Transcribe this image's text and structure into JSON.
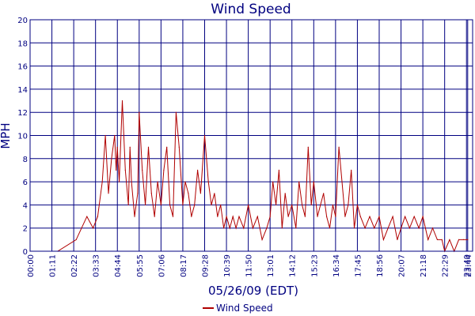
{
  "chart_data": {
    "type": "line",
    "title": "Wind Speed",
    "xlabel": "05/26/09 (EDT)",
    "ylabel": "MPH",
    "ylim": [
      0,
      20
    ],
    "yticks": [
      0,
      2,
      4,
      6,
      8,
      10,
      12,
      14,
      16,
      18,
      20
    ],
    "xlim_minutes": [
      0,
      1440
    ],
    "xticks": [
      "00:00",
      "01:11",
      "02:22",
      "03:33",
      "04:44",
      "05:55",
      "07:06",
      "08:17",
      "09:28",
      "10:39",
      "11:50",
      "13:01",
      "14:12",
      "15:23",
      "16:34",
      "17:45",
      "18:56",
      "20:07",
      "21:18",
      "22:29",
      "23:40",
      "23:44"
    ],
    "grid": true,
    "legend": "bottom",
    "colors": {
      "series": "#b00000",
      "axis": "#000080",
      "grid": "#000080"
    },
    "series": [
      {
        "name": "Wind Speed",
        "x": [
          "00:00",
          "01:30",
          "02:30",
          "03:05",
          "03:25",
          "03:40",
          "03:55",
          "04:05",
          "04:15",
          "04:25",
          "04:35",
          "04:40",
          "04:44",
          "04:50",
          "05:00",
          "05:10",
          "05:20",
          "05:25",
          "05:30",
          "05:40",
          "05:50",
          "05:55",
          "06:05",
          "06:15",
          "06:25",
          "06:35",
          "06:45",
          "06:55",
          "07:06",
          "07:15",
          "07:25",
          "07:35",
          "07:45",
          "07:55",
          "08:05",
          "08:17",
          "08:25",
          "08:35",
          "08:45",
          "08:55",
          "09:05",
          "09:15",
          "09:28",
          "09:40",
          "09:50",
          "10:00",
          "10:10",
          "10:20",
          "10:30",
          "10:39",
          "10:50",
          "11:00",
          "11:10",
          "11:20",
          "11:35",
          "11:50",
          "12:05",
          "12:20",
          "12:35",
          "12:50",
          "13:01",
          "13:10",
          "13:20",
          "13:30",
          "13:40",
          "13:50",
          "14:00",
          "14:12",
          "14:25",
          "14:35",
          "14:45",
          "14:55",
          "15:05",
          "15:15",
          "15:23",
          "15:35",
          "15:45",
          "15:55",
          "16:05",
          "16:15",
          "16:25",
          "16:34",
          "16:45",
          "16:55",
          "17:05",
          "17:15",
          "17:25",
          "17:35",
          "17:45",
          "17:55",
          "18:10",
          "18:25",
          "18:40",
          "18:56",
          "19:10",
          "19:25",
          "19:40",
          "19:55",
          "20:07",
          "20:20",
          "20:35",
          "20:50",
          "21:05",
          "21:18",
          "21:35",
          "21:50",
          "22:05",
          "22:20",
          "22:29",
          "22:45",
          "23:00",
          "23:15",
          "23:30",
          "23:44"
        ],
        "values": [
          0,
          0,
          1,
          3,
          2,
          3,
          6,
          10,
          5,
          8,
          10,
          7,
          9,
          6,
          13,
          7,
          4,
          9,
          6,
          3,
          5,
          12,
          7,
          4,
          9,
          5,
          3,
          6,
          4,
          7,
          9,
          4,
          3,
          12,
          9,
          4,
          6,
          5,
          3,
          4,
          7,
          5,
          10,
          6,
          4,
          5,
          3,
          4,
          2,
          3,
          2,
          3,
          2,
          3,
          2,
          4,
          2,
          3,
          1,
          2,
          3,
          6,
          4,
          7,
          2,
          5,
          3,
          4,
          2,
          6,
          4,
          3,
          9,
          4,
          6,
          3,
          4,
          5,
          3,
          2,
          4,
          3,
          9,
          6,
          3,
          4,
          7,
          2,
          4,
          3,
          2,
          3,
          2,
          3,
          1,
          2,
          3,
          1,
          2,
          3,
          2,
          3,
          2,
          3,
          1,
          2,
          1,
          1,
          0,
          1,
          0,
          1,
          1,
          1
        ]
      }
    ]
  }
}
